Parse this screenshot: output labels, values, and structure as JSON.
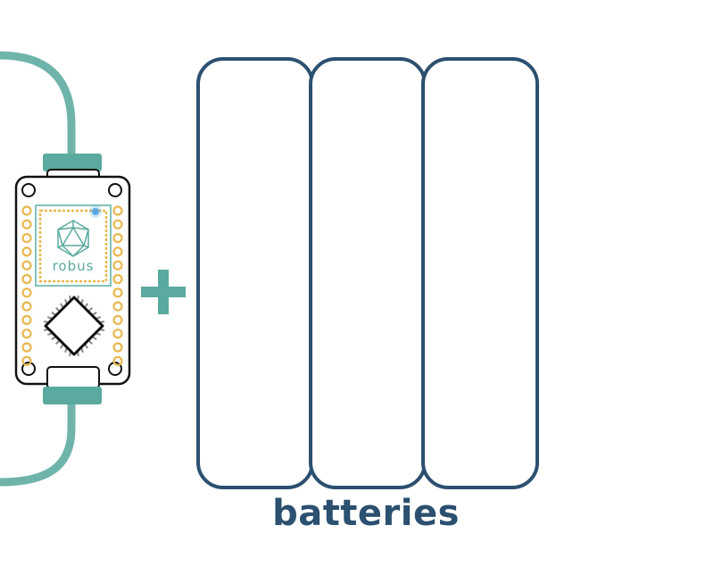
{
  "colors": {
    "cable": "#6fb4ab",
    "connector": "#5aaa9f",
    "board_outline": "#111111",
    "pads": "#e8b84f",
    "chip_frame": "#7ec4bc",
    "led": "#4aa3e0",
    "plus": "#5aaa9f",
    "battery": "#2b5070",
    "caption": "#2b5070"
  },
  "board": {
    "logo_text": "robus",
    "logo_icon": "icosahedron-icon"
  },
  "plus_symbol": "plus-icon",
  "batteries": {
    "count": 3,
    "label": "batteries"
  }
}
